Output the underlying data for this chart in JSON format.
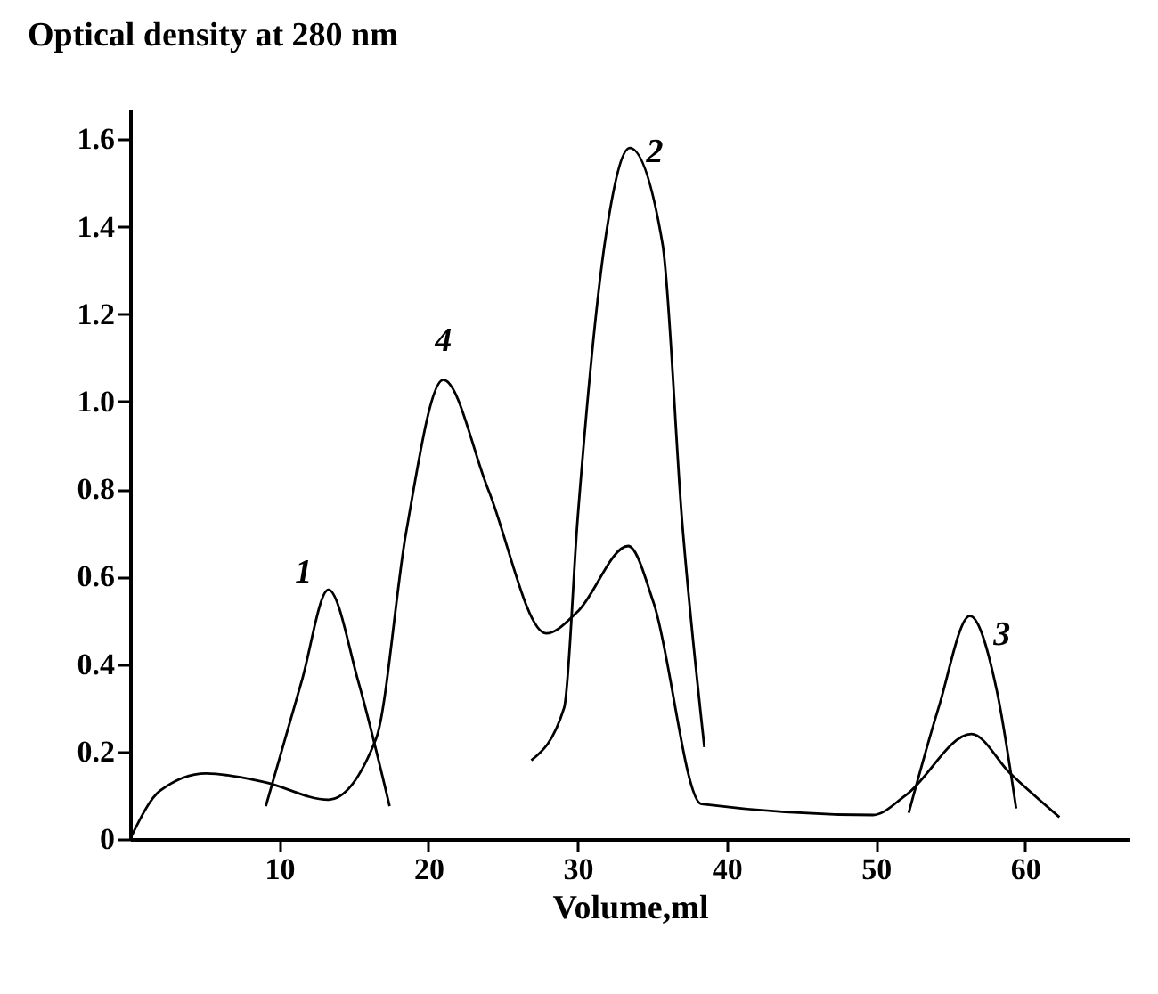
{
  "chart_data": {
    "type": "line",
    "ylabel": "Optical density at 280 nm",
    "xlabel": "Volume,ml",
    "xlim": [
      0,
      67
    ],
    "ylim": [
      0,
      1.67
    ],
    "xticks": [
      10,
      20,
      30,
      40,
      50,
      60
    ],
    "yticks": [
      {
        "value": 0,
        "label": "0"
      },
      0.2,
      0.4,
      0.6,
      0.8,
      {
        "value": 1,
        "label": "1.0"
      },
      1.2,
      1.4,
      1.6
    ],
    "grid": false,
    "legend": false,
    "marker": "none",
    "line_style": "solid",
    "series": [
      {
        "name": "1",
        "color": "#000000",
        "x": [
          9.1,
          11.5,
          13.3,
          15.3,
          17.4
        ],
        "values": [
          0.075,
          0.36,
          0.57,
          0.36,
          0.075
        ]
      },
      {
        "name": "2",
        "color": "#000000",
        "x": [
          26.9,
          29.1,
          30.0,
          31.9,
          33.5,
          35.7,
          37.0,
          38.5
        ],
        "values": [
          0.18,
          0.3,
          0.73,
          1.38,
          1.58,
          1.36,
          0.73,
          0.21
        ]
      },
      {
        "name": "3",
        "color": "#000000",
        "x": [
          52.2,
          54.2,
          56.3,
          58.1,
          59.4
        ],
        "values": [
          0.06,
          0.3,
          0.51,
          0.34,
          0.07
        ]
      },
      {
        "name": "4",
        "color": "#000000",
        "x": [
          0,
          2,
          5.1,
          9,
          13.3,
          16.5,
          18.5,
          21,
          24,
          27.9,
          30,
          33.4,
          35.1,
          38.3,
          49.8,
          52,
          56.4,
          59,
          62.3
        ],
        "values": [
          0,
          0.11,
          0.15,
          0.13,
          0.09,
          0.23,
          0.7,
          1.05,
          0.8,
          0.47,
          0.52,
          0.67,
          0.54,
          0.08,
          0.055,
          0.1,
          0.24,
          0.15,
          0.05
        ]
      }
    ]
  }
}
